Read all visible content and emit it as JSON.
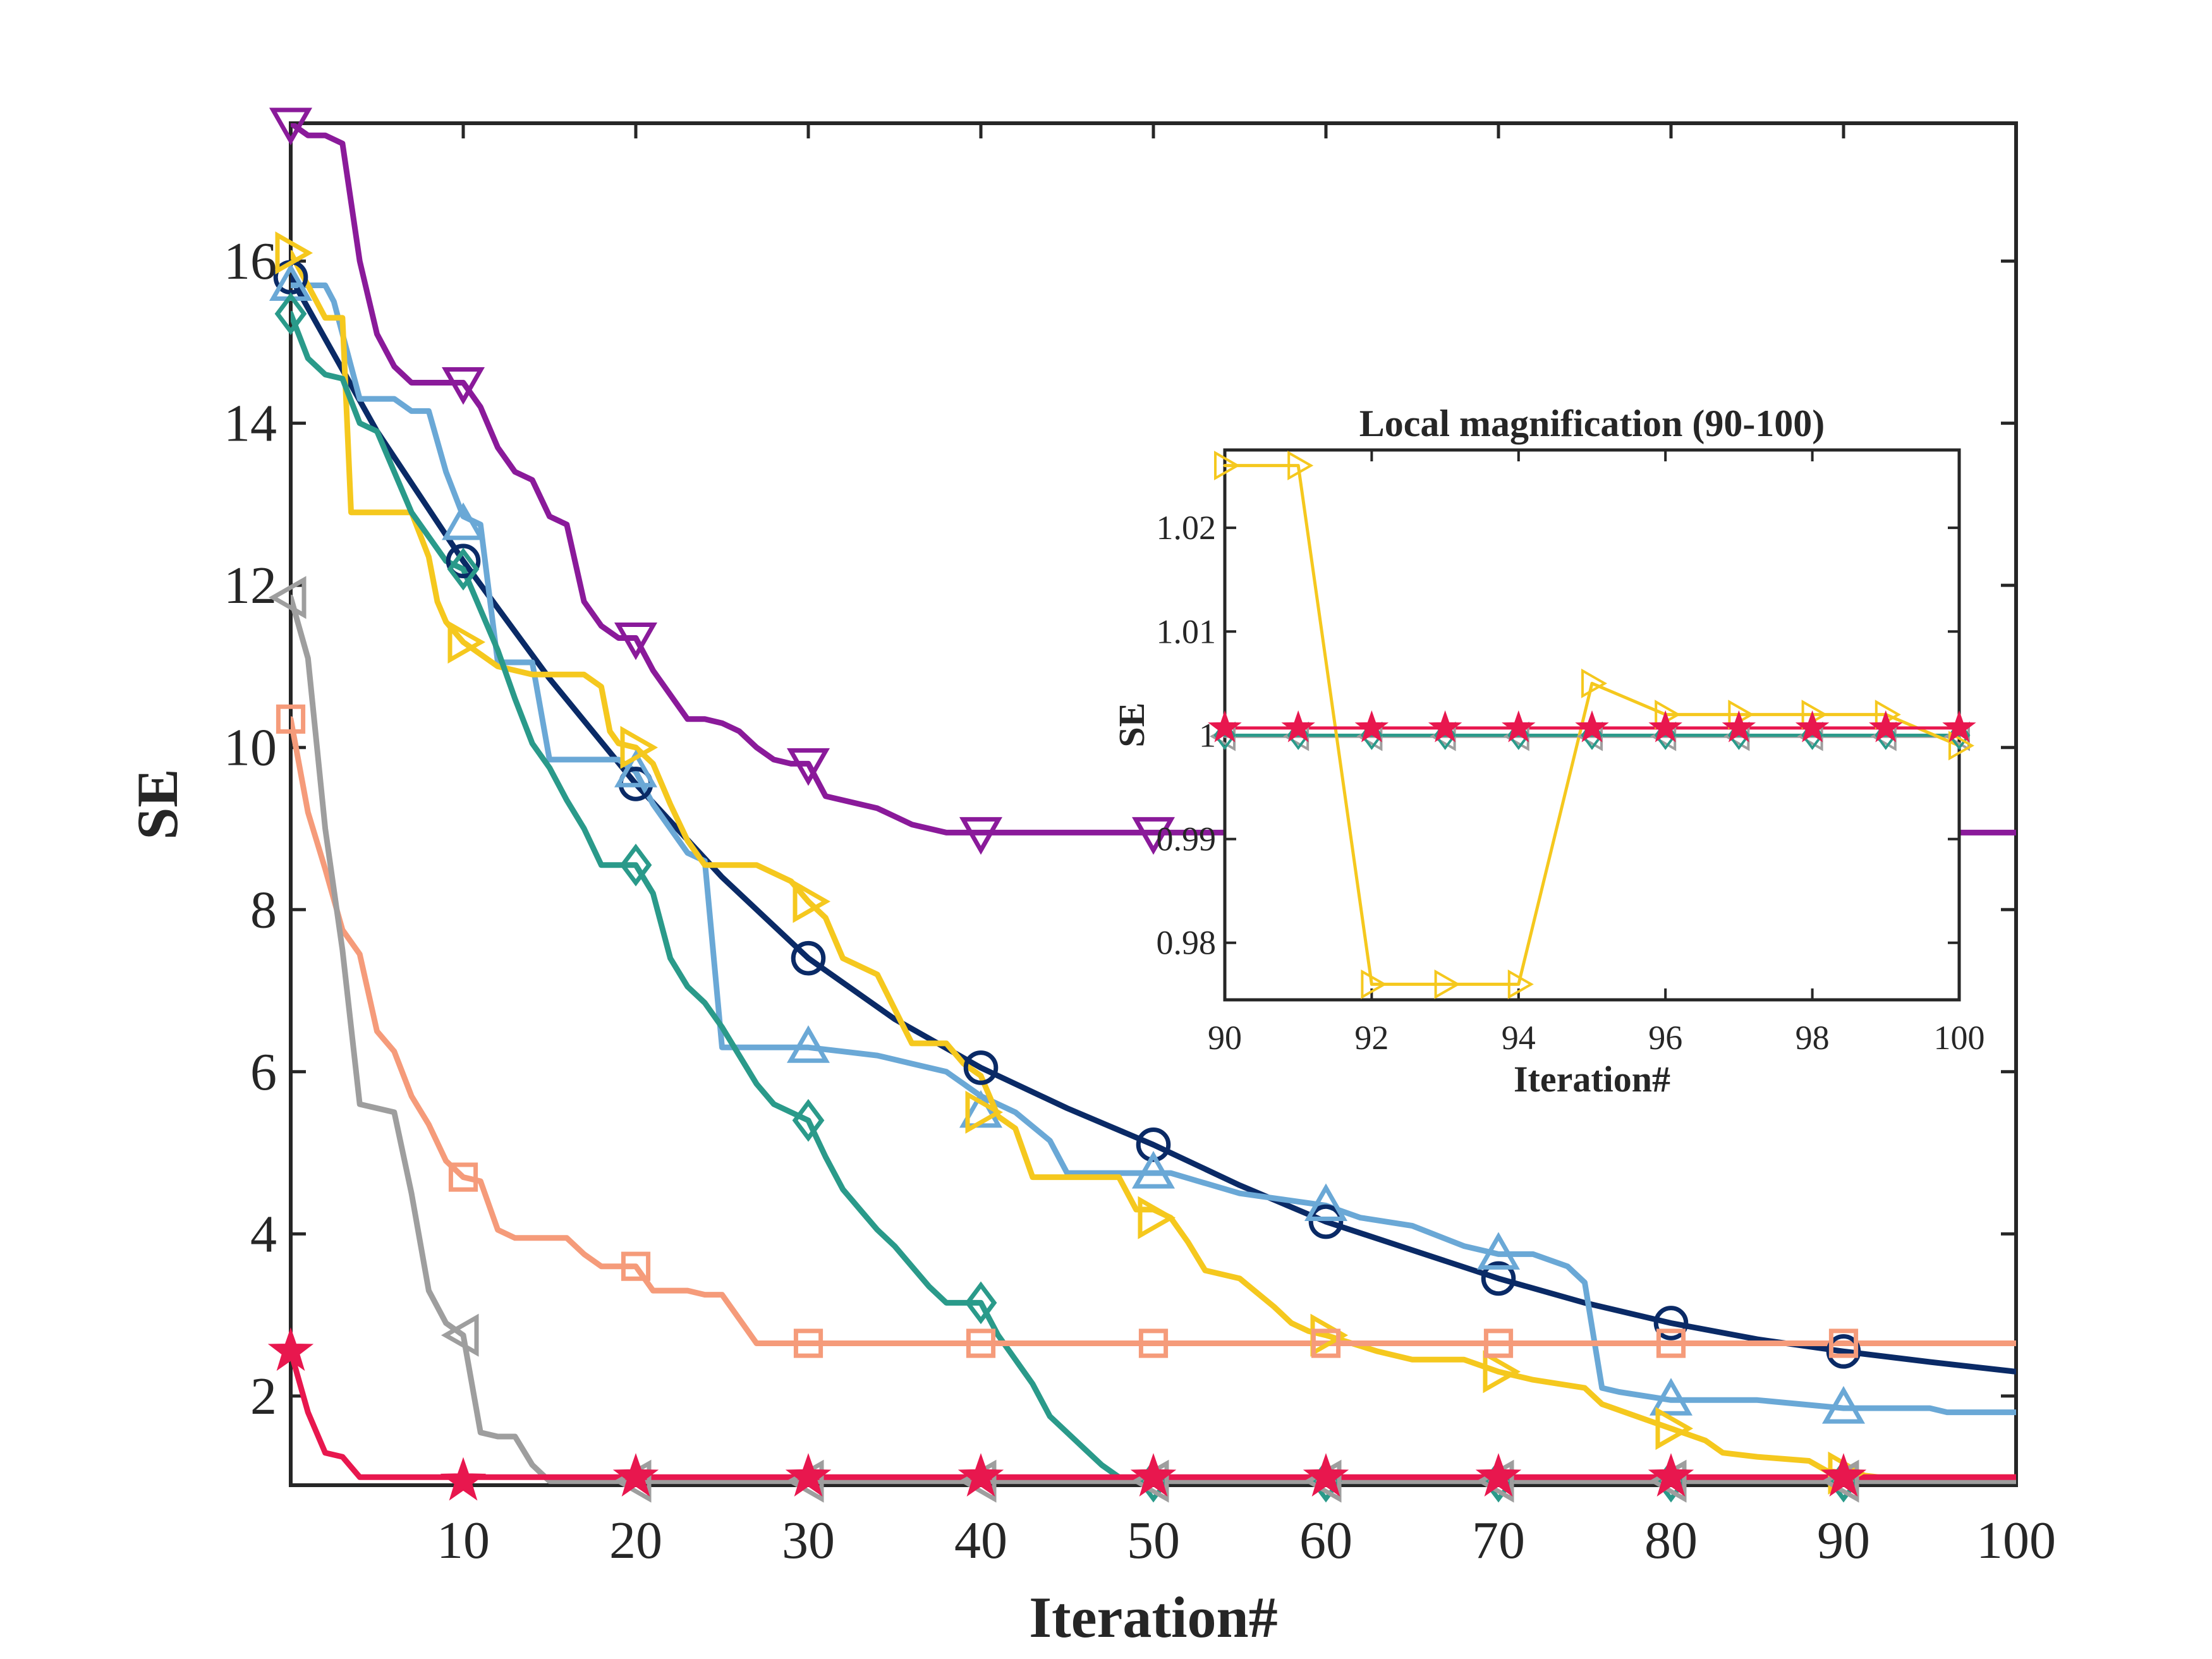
{
  "chart_data": [
    {
      "type": "line",
      "title": "",
      "xlabel": "Iteration#",
      "ylabel": "SE",
      "xlim": [
        0,
        100
      ],
      "ylim": [
        0.9,
        17.7
      ],
      "xticks": [
        10,
        20,
        30,
        40,
        50,
        60,
        70,
        80,
        90,
        100
      ],
      "yticks": [
        2,
        4,
        6,
        8,
        10,
        12,
        14,
        16
      ],
      "grid": false,
      "legend": "none",
      "series": [
        {
          "color": "#0a2a66",
          "marker": "circle",
          "markers": [
            [
              0,
              15.8
            ],
            [
              10,
              12.3
            ],
            [
              20,
              9.55
            ],
            [
              30,
              7.4
            ],
            [
              40,
              6.05
            ],
            [
              50,
              5.1
            ],
            [
              60,
              4.15
            ],
            [
              70,
              3.45
            ],
            [
              80,
              2.9
            ],
            [
              90,
              2.55
            ]
          ],
          "x": [
            0,
            5,
            10,
            15,
            20,
            25,
            30,
            35,
            40,
            45,
            50,
            55,
            60,
            65,
            70,
            75,
            80,
            85,
            90,
            95,
            100
          ],
          "values": [
            15.8,
            13.9,
            12.3,
            10.85,
            9.55,
            8.4,
            7.4,
            6.65,
            6.05,
            5.55,
            5.1,
            4.6,
            4.15,
            3.8,
            3.45,
            3.15,
            2.9,
            2.7,
            2.55,
            2.42,
            2.3
          ]
        },
        {
          "color": "#6aa8d6",
          "marker": "triangle-up",
          "markers": [
            [
              0,
              15.7
            ],
            [
              10,
              12.75
            ],
            [
              20,
              9.7
            ],
            [
              30,
              6.3
            ],
            [
              40,
              5.5
            ],
            [
              50,
              4.75
            ],
            [
              60,
              4.35
            ],
            [
              70,
              3.75
            ],
            [
              80,
              1.95
            ],
            [
              90,
              1.85
            ]
          ],
          "x": [
            0,
            2,
            2.5,
            4,
            6,
            7,
            8,
            9,
            10,
            11,
            12,
            13,
            14,
            15,
            16,
            18,
            19,
            20,
            21,
            22,
            23,
            24,
            25,
            26,
            27,
            28,
            30,
            32,
            34,
            36,
            38,
            40,
            42,
            44,
            45,
            50,
            51,
            55,
            60,
            62,
            65,
            68,
            70,
            72,
            74,
            75,
            76,
            77,
            80,
            85,
            90,
            95,
            96,
            100
          ],
          "values": [
            15.7,
            15.7,
            15.5,
            14.3,
            14.3,
            14.15,
            14.15,
            13.4,
            12.85,
            12.75,
            11.05,
            11.05,
            11.05,
            9.85,
            9.85,
            9.85,
            9.85,
            9.7,
            9.3,
            9.0,
            8.7,
            8.6,
            6.3,
            6.3,
            6.3,
            6.3,
            6.3,
            6.25,
            6.2,
            6.1,
            6.0,
            5.7,
            5.5,
            5.15,
            4.75,
            4.75,
            4.75,
            4.5,
            4.35,
            4.2,
            4.1,
            3.85,
            3.75,
            3.75,
            3.6,
            3.4,
            2.1,
            2.05,
            1.95,
            1.95,
            1.85,
            1.85,
            1.8,
            1.8
          ]
        },
        {
          "color": "#f5c81e",
          "marker": "triangle-right",
          "markers": [
            [
              0,
              16.1
            ],
            [
              10,
              11.3
            ],
            [
              20,
              10.0
            ],
            [
              30,
              8.1
            ],
            [
              40,
              5.5
            ],
            [
              50,
              4.2
            ],
            [
              60,
              2.75
            ],
            [
              70,
              2.3
            ],
            [
              80,
              1.6
            ],
            [
              90,
              1.05
            ]
          ],
          "x": [
            0,
            1,
            2,
            3,
            3.5,
            6,
            7,
            8,
            8.5,
            9,
            10,
            12,
            14,
            16,
            17,
            18,
            18.5,
            19,
            20,
            21,
            22,
            23,
            24,
            25,
            27,
            29,
            30,
            31,
            32,
            34,
            36,
            38,
            39,
            40,
            41,
            42,
            43,
            44,
            46,
            48,
            49,
            50,
            51,
            52,
            53,
            55,
            57,
            58,
            59,
            60,
            63,
            65,
            68,
            70,
            72,
            75,
            76,
            78,
            80,
            82,
            83,
            85,
            88,
            89,
            90,
            92,
            95,
            100
          ],
          "values": [
            16.1,
            15.7,
            15.3,
            15.3,
            12.9,
            12.9,
            12.9,
            12.35,
            11.8,
            11.55,
            11.3,
            11.0,
            10.9,
            10.9,
            10.9,
            10.75,
            10.2,
            10.05,
            10.0,
            9.8,
            9.3,
            8.85,
            8.55,
            8.55,
            8.55,
            8.35,
            8.1,
            7.9,
            7.4,
            7.2,
            6.35,
            6.35,
            6.1,
            5.95,
            5.45,
            5.3,
            4.7,
            4.7,
            4.7,
            4.7,
            4.3,
            4.3,
            4.2,
            3.9,
            3.55,
            3.45,
            3.1,
            2.9,
            2.8,
            2.75,
            2.55,
            2.45,
            2.45,
            2.3,
            2.2,
            2.1,
            1.9,
            1.75,
            1.6,
            1.45,
            1.3,
            1.25,
            1.2,
            1.08,
            1.05,
            1.0,
            1.0,
            1.0
          ]
        },
        {
          "color": "#2a9a8a",
          "marker": "diamond",
          "markers": [
            [
              0,
              15.35
            ],
            [
              10,
              12.2
            ],
            [
              20,
              8.55
            ],
            [
              30,
              5.4
            ],
            [
              40,
              3.15
            ],
            [
              50,
              0.95
            ],
            [
              60,
              0.95
            ],
            [
              70,
              0.95
            ],
            [
              80,
              0.95
            ],
            [
              90,
              0.95
            ]
          ],
          "x": [
            0,
            1,
            2,
            3,
            4,
            5,
            6,
            7,
            8,
            9,
            10,
            11,
            12,
            13,
            14,
            15,
            16,
            17,
            18,
            19,
            20,
            21,
            22,
            23,
            24,
            25,
            26,
            27,
            28,
            29,
            30,
            31,
            32,
            33,
            34,
            35,
            36,
            37,
            38,
            39,
            40,
            41,
            42,
            43,
            44,
            45,
            46,
            47,
            48,
            49,
            50,
            100
          ],
          "values": [
            15.35,
            14.8,
            14.6,
            14.55,
            14.0,
            13.9,
            13.4,
            12.9,
            12.6,
            12.3,
            12.2,
            11.7,
            11.2,
            10.6,
            10.05,
            9.75,
            9.35,
            9.0,
            8.55,
            8.55,
            8.55,
            8.2,
            7.4,
            7.05,
            6.85,
            6.55,
            6.2,
            5.85,
            5.6,
            5.5,
            5.4,
            4.95,
            4.55,
            4.3,
            4.05,
            3.85,
            3.6,
            3.35,
            3.15,
            3.15,
            3.15,
            2.75,
            2.45,
            2.15,
            1.75,
            1.55,
            1.35,
            1.15,
            1.0,
            0.95,
            0.95,
            0.95
          ]
        },
        {
          "color": "#8a1a9a",
          "marker": "triangle-down",
          "markers": [
            [
              0,
              17.7
            ],
            [
              10,
              14.5
            ],
            [
              20,
              11.35
            ],
            [
              30,
              9.8
            ],
            [
              40,
              8.95
            ],
            [
              50,
              8.95
            ],
            [
              60,
              8.95
            ],
            [
              70,
              8.95
            ],
            [
              80,
              8.95
            ],
            [
              90,
              8.95
            ]
          ],
          "x": [
            0,
            1,
            2,
            3,
            4,
            5,
            6,
            7,
            8,
            9,
            10,
            11,
            12,
            13,
            14,
            15,
            16,
            17,
            18,
            19,
            20,
            21,
            22,
            23,
            24,
            25,
            26,
            27,
            28,
            29,
            30,
            31,
            32,
            33,
            34,
            35,
            36,
            37,
            38,
            39,
            40,
            45,
            100
          ],
          "values": [
            17.7,
            17.55,
            17.55,
            17.45,
            16.0,
            15.1,
            14.7,
            14.5,
            14.5,
            14.5,
            14.5,
            14.2,
            13.7,
            13.4,
            13.3,
            12.85,
            12.75,
            11.8,
            11.5,
            11.35,
            11.35,
            10.95,
            10.65,
            10.35,
            10.35,
            10.3,
            10.2,
            10.0,
            9.85,
            9.8,
            9.8,
            9.4,
            9.35,
            9.3,
            9.25,
            9.15,
            9.05,
            9.0,
            8.95,
            8.95,
            8.95,
            8.95,
            8.95
          ]
        },
        {
          "color": "#f59b7a",
          "marker": "square",
          "markers": [
            [
              0,
              10.35
            ],
            [
              10,
              4.7
            ],
            [
              20,
              3.6
            ],
            [
              30,
              2.65
            ],
            [
              40,
              2.65
            ],
            [
              50,
              2.65
            ],
            [
              60,
              2.65
            ],
            [
              70,
              2.65
            ],
            [
              80,
              2.65
            ],
            [
              90,
              2.65
            ]
          ],
          "x": [
            0,
            1,
            2,
            3,
            4,
            5,
            6,
            7,
            8,
            9,
            10,
            11,
            12,
            13,
            14,
            15,
            16,
            17,
            18,
            19,
            20,
            21,
            22,
            23,
            24,
            25,
            26,
            27,
            28,
            29,
            30,
            100
          ],
          "values": [
            10.35,
            9.2,
            8.5,
            7.75,
            7.45,
            6.5,
            6.25,
            5.7,
            5.35,
            4.9,
            4.7,
            4.65,
            4.05,
            3.95,
            3.95,
            3.95,
            3.95,
            3.75,
            3.6,
            3.6,
            3.6,
            3.3,
            3.3,
            3.3,
            3.25,
            3.25,
            2.95,
            2.65,
            2.65,
            2.65,
            2.65,
            2.65
          ]
        },
        {
          "color": "#9e9e9e",
          "marker": "triangle-left",
          "markers": [
            [
              0,
              11.85
            ],
            [
              10,
              2.75
            ],
            [
              20,
              0.95
            ],
            [
              30,
              0.95
            ],
            [
              40,
              0.95
            ],
            [
              50,
              0.95
            ],
            [
              60,
              0.95
            ],
            [
              70,
              0.95
            ],
            [
              80,
              0.95
            ],
            [
              90,
              0.95
            ]
          ],
          "x": [
            0,
            1,
            2,
            3,
            4,
            5,
            6,
            7,
            8,
            9,
            10,
            11,
            12,
            13,
            14,
            15,
            16,
            17,
            100
          ],
          "values": [
            11.85,
            11.1,
            9.0,
            7.5,
            5.6,
            5.55,
            5.5,
            4.5,
            3.3,
            2.9,
            2.75,
            1.55,
            1.5,
            1.5,
            1.15,
            0.95,
            0.95,
            0.95,
            0.95
          ]
        },
        {
          "color": "#e8174e",
          "marker": "star",
          "markers": [
            [
              0,
              2.55
            ],
            [
              10,
              0.95
            ],
            [
              20,
              1.0
            ],
            [
              30,
              1.0
            ],
            [
              40,
              1.0
            ],
            [
              50,
              1.0
            ],
            [
              60,
              1.0
            ],
            [
              70,
              1.0
            ],
            [
              80,
              1.0
            ],
            [
              90,
              1.0
            ]
          ],
          "x": [
            0,
            1,
            2,
            3,
            4,
            100
          ],
          "values": [
            2.55,
            1.8,
            1.3,
            1.25,
            1.0,
            1.0
          ]
        }
      ]
    },
    {
      "type": "line",
      "title": "Local magnification (90-100)",
      "xlabel": "Iteration#",
      "ylabel": "SE",
      "xlim": [
        90,
        100
      ],
      "ylim": [
        0.9745,
        1.0275
      ],
      "xticks": [
        90,
        92,
        94,
        96,
        98,
        100
      ],
      "yticks": [
        0.98,
        0.99,
        1,
        1.01,
        1.02
      ],
      "grid": false,
      "legend": "none",
      "series": [
        {
          "color": "#9e9e9e",
          "marker": "triangle-left",
          "x": [
            90,
            91,
            92,
            93,
            94,
            95,
            96,
            97,
            98,
            99,
            100
          ],
          "values": [
            0.9999,
            0.9999,
            0.9999,
            0.9999,
            0.9999,
            0.9999,
            0.9999,
            0.9999,
            0.9999,
            0.9999,
            0.9999
          ]
        },
        {
          "color": "#2a9a8a",
          "marker": "diamond",
          "x": [
            90,
            91,
            92,
            93,
            94,
            95,
            96,
            97,
            98,
            99,
            100
          ],
          "values": [
            1.0,
            1.0,
            1.0,
            1.0,
            1.0,
            1.0,
            1.0,
            1.0,
            1.0,
            1.0,
            1.0
          ]
        },
        {
          "color": "#f5c81e",
          "marker": "triangle-right",
          "x": [
            90,
            91,
            92,
            93,
            94,
            95,
            96,
            97,
            98,
            99,
            100
          ],
          "values": [
            1.026,
            1.026,
            0.976,
            0.976,
            0.976,
            1.005,
            1.002,
            1.002,
            1.002,
            1.002,
            0.999
          ]
        },
        {
          "color": "#e8174e",
          "marker": "star",
          "x": [
            90,
            91,
            92,
            93,
            94,
            95,
            96,
            97,
            98,
            99,
            100
          ],
          "values": [
            1.0007,
            1.0007,
            1.0007,
            1.0007,
            1.0007,
            1.0007,
            1.0007,
            1.0007,
            1.0007,
            1.0007,
            1.0007
          ]
        }
      ]
    }
  ]
}
